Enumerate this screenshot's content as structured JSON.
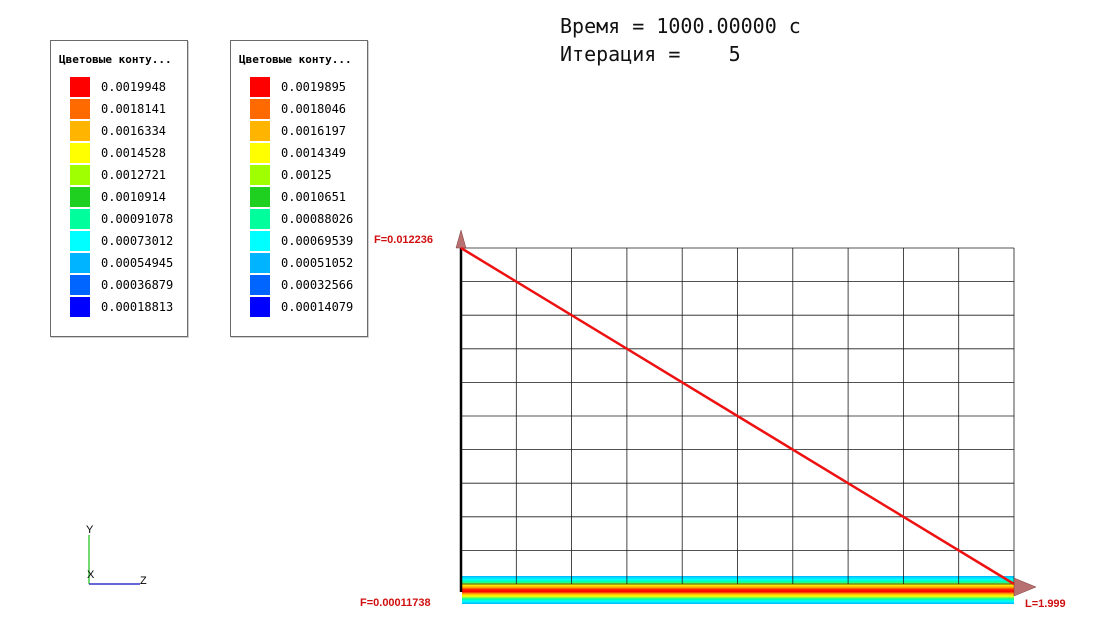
{
  "header": {
    "time_label": "Время = 1000.00000 с",
    "iteration_label": "Итерация =    5"
  },
  "legends": [
    {
      "title": "Цветовые конту...",
      "entries": [
        {
          "value": "0.0019948",
          "color": "#ff0000"
        },
        {
          "value": "0.0018141",
          "color": "#ff6a00"
        },
        {
          "value": "0.0016334",
          "color": "#ffb400"
        },
        {
          "value": "0.0014528",
          "color": "#ffff00"
        },
        {
          "value": "0.0012721",
          "color": "#a0ff00"
        },
        {
          "value": "0.0010914",
          "color": "#20d020"
        },
        {
          "value": "0.00091078",
          "color": "#00ff9c"
        },
        {
          "value": "0.00073012",
          "color": "#00ffff"
        },
        {
          "value": "0.00054945",
          "color": "#00b4ff"
        },
        {
          "value": "0.00036879",
          "color": "#0064ff"
        },
        {
          "value": "0.00018813",
          "color": "#0000ff"
        }
      ]
    },
    {
      "title": "Цветовые конту...",
      "entries": [
        {
          "value": "0.0019895",
          "color": "#ff0000"
        },
        {
          "value": "0.0018046",
          "color": "#ff6a00"
        },
        {
          "value": "0.0016197",
          "color": "#ffb400"
        },
        {
          "value": "0.0014349",
          "color": "#ffff00"
        },
        {
          "value": "0.00125",
          "color": "#a0ff00"
        },
        {
          "value": "0.0010651",
          "color": "#20d020"
        },
        {
          "value": "0.00088026",
          "color": "#00ff9c"
        },
        {
          "value": "0.00069539",
          "color": "#00ffff"
        },
        {
          "value": "0.00051052",
          "color": "#00b4ff"
        },
        {
          "value": "0.00032566",
          "color": "#0064ff"
        },
        {
          "value": "0.00014079",
          "color": "#0000ff"
        }
      ]
    }
  ],
  "chart_data": {
    "type": "line",
    "series": [
      {
        "x": [
          0,
          1.999
        ],
        "y": [
          0.012236,
          0.00011738
        ],
        "color": "#ee1111"
      }
    ],
    "xlim": [
      0,
      1.999
    ],
    "ylim": [
      0.00011738,
      0.012236
    ],
    "f_max_label": "F=0.012236",
    "f_min_label": "F=0.00011738",
    "l_label": "L=1.999",
    "grid": true,
    "grid_cols": 10,
    "grid_rows": 10
  },
  "axes": {
    "y": "Y",
    "x": "X",
    "z": "Z",
    "y_color": "#44cc44",
    "z_color": "#3333cc"
  }
}
